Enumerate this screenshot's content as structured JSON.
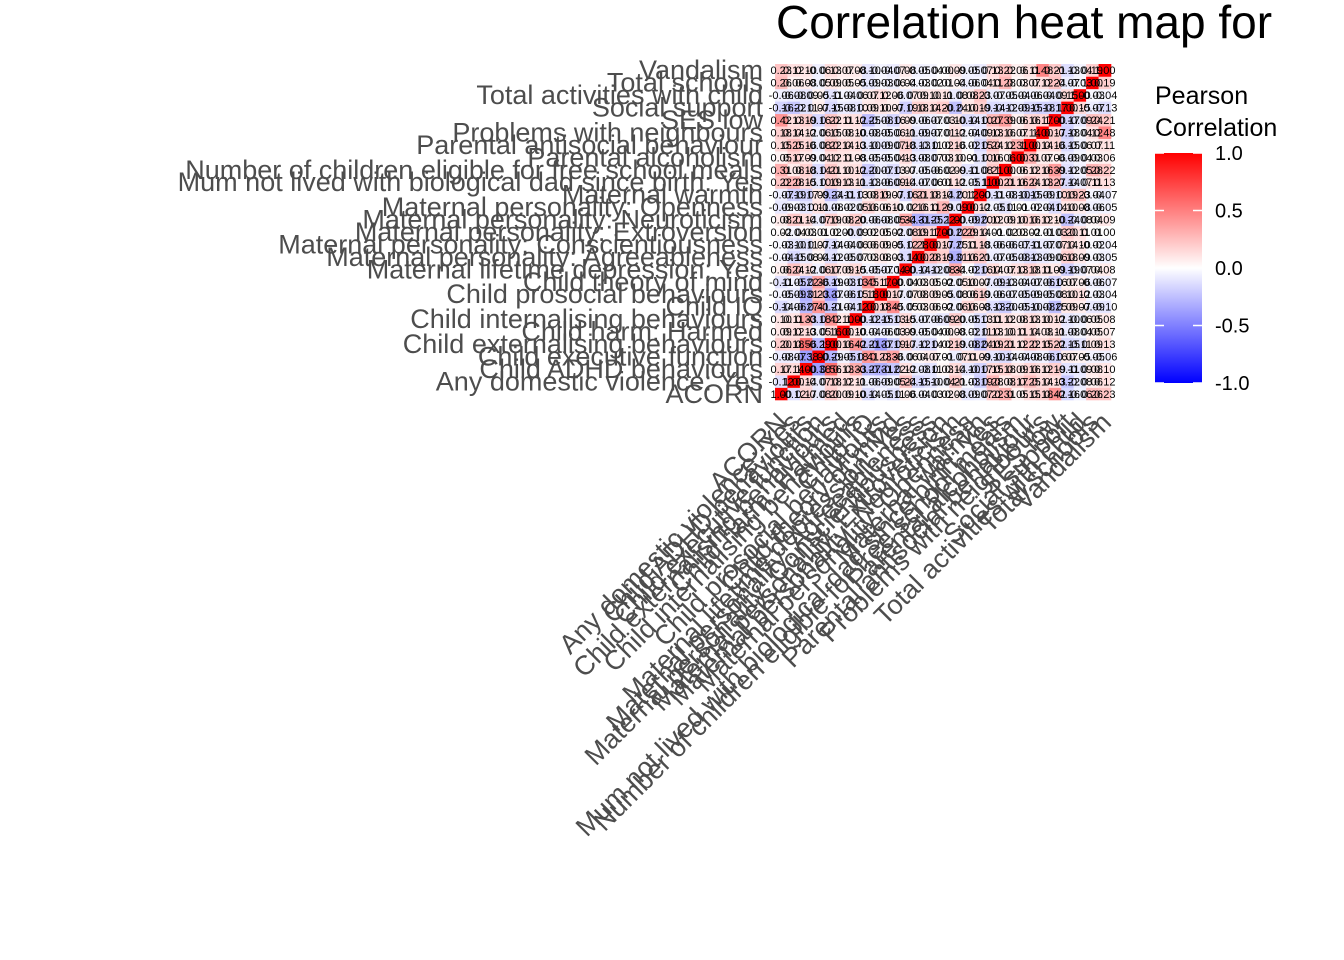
{
  "chart_data": {
    "type": "heatmap",
    "title": "Correlation heat map for",
    "legend": {
      "title_lines": [
        "Pearson",
        "Correlation"
      ],
      "ticks": [
        1.0,
        0.5,
        0.0,
        -0.5,
        -1.0
      ],
      "tick_labels": [
        "1.0",
        "0.5",
        "0.0",
        "-0.5",
        "-1.0"
      ],
      "range": [
        -1,
        1
      ],
      "colors": {
        "low": "#0000ff",
        "mid": "#ffffff",
        "high": "#ff0000"
      },
      "position": "right"
    },
    "variables": [
      "ACORN",
      "Any domestic violence: Yes",
      "Child ADHD behaviours",
      "Child executive function",
      "Child externalising behaviours",
      "Child harm: Harmed",
      "Child internalising behaviours",
      "Child IQ",
      "Child prosocial behaviours",
      "Child theory of mind",
      "Maternal lifetime depression: Yes",
      "Maternal personality: Agreeableness",
      "Maternal personality: Conscientiousness",
      "Maternal personality: Extroversion",
      "Maternal personality: Neuroticism",
      "Maternal personality: Openness",
      "Maternal warmth",
      "Mum not lived with biological dad since birth: Yes",
      "Number of children eligible for free school meals",
      "Parental alcoholism",
      "Parental antisocial behaviour",
      "Problems with neighbours",
      "SES low",
      "Social support",
      "Total activities with child",
      "Total schools",
      "Vandalism"
    ],
    "matrix": [
      [
        1.0,
        -0.12,
        0.17,
        -0.08,
        0.2,
        0.09,
        0.1,
        -0.14,
        -0.05,
        -0.11,
        0.06,
        -0.04,
        -0.03,
        0.02,
        0.08,
        -0.09,
        -0.07,
        0.22,
        0.31,
        0.05,
        0.15,
        0.18,
        0.42,
        -0.16,
        -0.06,
        0.26,
        0.23
      ],
      [
        -0.12,
        1.0,
        0.14,
        -0.07,
        0.18,
        0.12,
        0.11,
        -0.06,
        -0.09,
        -0.05,
        0.24,
        -0.15,
        -0.1,
        -0.04,
        0.21,
        -0.03,
        -0.19,
        0.28,
        0.08,
        0.17,
        0.25,
        0.14,
        0.13,
        -0.22,
        -0.08,
        0.06,
        0.12
      ],
      [
        0.17,
        0.14,
        1.0,
        -0.38,
        0.56,
        0.13,
        0.33,
        -0.27,
        -0.31,
        -0.22,
        0.12,
        -0.08,
        -0.11,
        0.03,
        0.14,
        -0.1,
        -0.17,
        0.15,
        0.18,
        0.09,
        0.16,
        0.12,
        0.19,
        -0.11,
        -0.09,
        0.08,
        0.1
      ],
      [
        -0.08,
        -0.07,
        -0.38,
        1.0,
        -0.29,
        -0.05,
        -0.18,
        0.41,
        0.23,
        0.36,
        -0.06,
        0.04,
        0.07,
        0.01,
        -0.07,
        0.11,
        0.09,
        -0.1,
        -0.14,
        -0.04,
        -0.08,
        -0.06,
        -0.16,
        0.07,
        0.05,
        -0.05,
        -0.06
      ],
      [
        0.2,
        0.18,
        0.56,
        -0.29,
        1.0,
        0.16,
        0.42,
        -0.21,
        -0.37,
        -0.19,
        0.17,
        -0.12,
        -0.14,
        0.02,
        0.19,
        -0.08,
        -0.24,
        0.19,
        0.21,
        0.12,
        0.22,
        0.15,
        0.22,
        -0.15,
        -0.11,
        0.09,
        0.13
      ],
      [
        0.09,
        0.12,
        0.13,
        -0.05,
        0.16,
        1.0,
        0.1,
        -0.04,
        -0.06,
        -0.03,
        0.09,
        -0.05,
        -0.04,
        0.0,
        0.08,
        -0.02,
        -0.11,
        0.13,
        0.1,
        0.11,
        0.14,
        0.08,
        0.11,
        -0.08,
        -0.04,
        0.05,
        0.07
      ],
      [
        0.1,
        0.11,
        0.33,
        -0.18,
        0.42,
        0.1,
        1.0,
        -0.12,
        -0.15,
        -0.13,
        0.15,
        -0.07,
        -0.06,
        -0.09,
        0.2,
        -0.05,
        -0.13,
        0.11,
        0.12,
        0.08,
        0.13,
        0.1,
        0.12,
        -0.1,
        -0.06,
        0.05,
        0.08
      ],
      [
        -0.14,
        -0.06,
        -0.27,
        0.41,
        -0.21,
        -0.04,
        -0.12,
        1.0,
        0.18,
        0.45,
        -0.05,
        0.03,
        0.06,
        0.02,
        -0.06,
        0.16,
        0.08,
        -0.13,
        -0.2,
        -0.05,
        -0.1,
        -0.08,
        -0.25,
        0.09,
        0.07,
        -0.09,
        -0.1
      ],
      [
        -0.05,
        -0.09,
        -0.31,
        0.23,
        -0.37,
        -0.06,
        -0.15,
        0.18,
        1.0,
        0.17,
        -0.07,
        0.08,
        0.09,
        0.05,
        -0.08,
        0.06,
        0.19,
        -0.06,
        -0.07,
        -0.05,
        -0.09,
        -0.05,
        -0.08,
        0.1,
        0.12,
        -0.03,
        -0.04
      ],
      [
        -0.11,
        -0.05,
        -0.22,
        0.36,
        -0.19,
        -0.03,
        -0.13,
        0.45,
        0.17,
        1.0,
        -0.04,
        0.03,
        0.05,
        0.02,
        -0.05,
        0.1,
        0.07,
        -0.09,
        -0.13,
        -0.04,
        -0.07,
        -0.06,
        -0.16,
        0.07,
        0.06,
        -0.06,
        -0.07
      ],
      [
        0.06,
        0.24,
        0.12,
        -0.06,
        0.17,
        0.09,
        0.15,
        -0.05,
        -0.07,
        -0.04,
        1.0,
        -0.14,
        -0.12,
        -0.08,
        0.34,
        -0.02,
        -0.16,
        0.14,
        0.07,
        0.13,
        0.18,
        0.11,
        0.09,
        -0.19,
        -0.07,
        0.04,
        0.08
      ],
      [
        -0.04,
        -0.15,
        -0.08,
        0.04,
        -0.12,
        -0.05,
        -0.07,
        0.03,
        0.08,
        0.03,
        -0.14,
        1.0,
        0.28,
        0.19,
        -0.31,
        0.16,
        0.21,
        -0.07,
        -0.05,
        -0.08,
        -0.13,
        -0.09,
        -0.06,
        0.18,
        0.09,
        -0.03,
        -0.05
      ],
      [
        -0.03,
        -0.1,
        -0.11,
        0.07,
        -0.14,
        -0.04,
        -0.06,
        0.06,
        0.09,
        0.05,
        -0.12,
        0.28,
        1.0,
        0.17,
        -0.25,
        0.11,
        0.18,
        -0.06,
        -0.06,
        -0.07,
        -0.11,
        -0.07,
        -0.07,
        0.14,
        0.1,
        -0.02,
        -0.04
      ],
      [
        0.02,
        -0.04,
        0.03,
        0.01,
        0.02,
        0.0,
        -0.09,
        0.02,
        0.05,
        0.02,
        -0.08,
        0.19,
        0.17,
        1.0,
        -0.22,
        0.29,
        0.14,
        0.01,
        -0.02,
        0.03,
        0.02,
        -0.01,
        -0.03,
        0.2,
        0.11,
        0.01,
        0.0
      ],
      [
        0.08,
        0.21,
        0.14,
        -0.07,
        0.19,
        0.08,
        0.2,
        -0.06,
        -0.08,
        -0.05,
        0.34,
        -0.31,
        -0.25,
        -0.22,
        1.0,
        -0.09,
        -0.2,
        0.12,
        0.09,
        0.1,
        0.16,
        0.12,
        0.1,
        -0.24,
        -0.08,
        0.04,
        0.09
      ],
      [
        -0.09,
        -0.03,
        -0.1,
        0.11,
        -0.08,
        -0.02,
        -0.05,
        0.16,
        0.06,
        0.1,
        -0.02,
        0.16,
        0.11,
        0.29,
        -0.09,
        1.0,
        0.12,
        -0.05,
        -0.11,
        0.01,
        -0.02,
        -0.04,
        -0.14,
        0.1,
        0.08,
        -0.06,
        -0.05
      ],
      [
        -0.07,
        -0.19,
        -0.17,
        0.09,
        -0.24,
        -0.11,
        -0.13,
        0.08,
        0.19,
        0.07,
        -0.16,
        0.21,
        0.18,
        0.14,
        -0.2,
        0.12,
        1.0,
        -0.11,
        -0.08,
        -0.1,
        -0.15,
        -0.09,
        -0.1,
        0.19,
        0.23,
        -0.04,
        -0.07
      ],
      [
        0.22,
        0.28,
        0.15,
        -0.1,
        0.19,
        0.13,
        0.11,
        -0.13,
        -0.06,
        -0.09,
        0.14,
        -0.07,
        -0.06,
        0.01,
        0.12,
        -0.05,
        -0.11,
        1.0,
        0.21,
        0.16,
        0.24,
        0.13,
        0.27,
        -0.14,
        -0.07,
        0.11,
        0.13
      ],
      [
        0.31,
        0.08,
        0.18,
        -0.14,
        0.21,
        0.1,
        0.12,
        -0.2,
        -0.07,
        -0.13,
        0.07,
        -0.05,
        -0.06,
        -0.02,
        0.09,
        -0.11,
        -0.08,
        0.21,
        1.0,
        0.06,
        0.12,
        0.16,
        0.39,
        -0.12,
        -0.05,
        0.28,
        0.22
      ],
      [
        0.05,
        0.17,
        0.09,
        -0.04,
        0.12,
        0.11,
        0.08,
        -0.05,
        -0.05,
        -0.04,
        0.13,
        -0.08,
        -0.07,
        0.03,
        0.1,
        0.01,
        -0.1,
        0.16,
        0.06,
        1.0,
        0.31,
        0.07,
        0.06,
        -0.09,
        -0.04,
        0.03,
        0.06
      ],
      [
        0.15,
        0.25,
        0.16,
        -0.08,
        0.22,
        0.14,
        0.13,
        -0.1,
        -0.09,
        -0.07,
        0.18,
        -0.13,
        -0.11,
        0.02,
        0.16,
        -0.02,
        -0.15,
        0.24,
        0.12,
        0.31,
        1.0,
        0.14,
        0.16,
        -0.15,
        -0.06,
        0.07,
        0.11
      ],
      [
        0.18,
        0.14,
        0.12,
        -0.06,
        0.15,
        0.08,
        0.1,
        -0.08,
        -0.05,
        -0.06,
        0.11,
        -0.09,
        -0.07,
        -0.01,
        0.12,
        -0.04,
        -0.09,
        0.13,
        0.16,
        0.07,
        0.14,
        1.0,
        0.17,
        -0.18,
        -0.04,
        0.12,
        0.48
      ],
      [
        0.42,
        0.13,
        0.19,
        -0.16,
        0.22,
        0.11,
        0.12,
        -0.25,
        -0.08,
        -0.16,
        0.09,
        -0.06,
        -0.07,
        -0.03,
        0.1,
        -0.14,
        -0.1,
        0.27,
        0.39,
        0.06,
        0.16,
        0.17,
        1.0,
        -0.17,
        -0.09,
        0.24,
        0.21
      ],
      [
        -0.16,
        -0.22,
        -0.11,
        0.07,
        -0.15,
        -0.08,
        -0.1,
        0.09,
        0.1,
        0.07,
        -0.19,
        0.18,
        0.14,
        0.2,
        -0.24,
        0.1,
        0.19,
        -0.14,
        -0.12,
        -0.09,
        -0.15,
        -0.18,
        -0.17,
        1.0,
        0.15,
        -0.07,
        -0.13
      ],
      [
        -0.06,
        -0.08,
        -0.09,
        0.05,
        -0.11,
        -0.04,
        -0.06,
        0.07,
        0.12,
        0.06,
        -0.07,
        0.09,
        0.1,
        0.11,
        -0.08,
        0.08,
        0.23,
        -0.07,
        -0.05,
        -0.04,
        -0.06,
        -0.04,
        -0.09,
        0.15,
        1.0,
        -0.03,
        -0.04
      ],
      [
        0.26,
        0.06,
        0.08,
        -0.05,
        0.09,
        0.05,
        0.05,
        -0.09,
        -0.03,
        -0.06,
        0.04,
        -0.03,
        -0.02,
        0.01,
        0.04,
        -0.06,
        -0.04,
        0.11,
        0.28,
        0.03,
        0.07,
        0.12,
        0.24,
        -0.07,
        -0.03,
        1.0,
        0.19
      ],
      [
        0.23,
        0.12,
        0.1,
        -0.06,
        0.13,
        0.07,
        0.08,
        -0.1,
        -0.04,
        -0.07,
        0.08,
        -0.05,
        -0.04,
        0.0,
        0.09,
        -0.05,
        -0.07,
        0.13,
        0.22,
        0.06,
        0.11,
        0.48,
        0.21,
        -0.13,
        -0.04,
        0.19,
        1.0
      ]
    ]
  }
}
